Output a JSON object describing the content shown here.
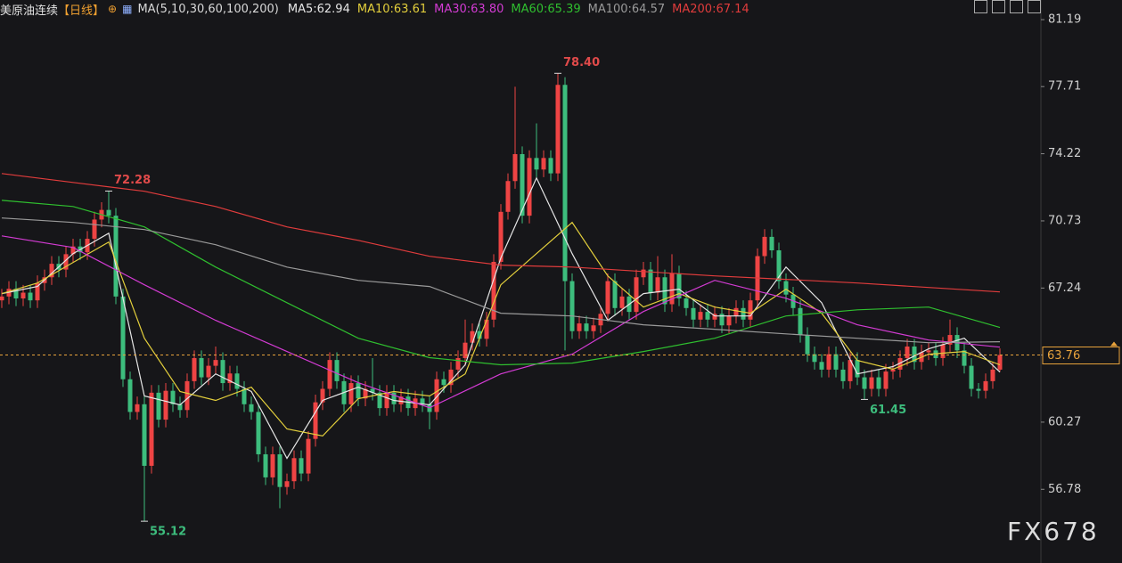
{
  "chart_data": {
    "type": "candlestick",
    "title": "美原油连续",
    "timeframe": "【日线】",
    "ma_settings": "MA(5,10,30,60,100,200)",
    "watermark": "FX678",
    "up_color": "#ee4444",
    "down_color": "#3dbd7d",
    "ylim": [
      52.95,
      82.21
    ],
    "yticks": [
      81.19,
      77.71,
      74.22,
      70.73,
      67.24,
      63.76,
      60.27,
      56.78
    ],
    "grid": false,
    "last_price": {
      "value": 63.76,
      "label": "63.76",
      "color": "#e8a33c"
    },
    "annotations": [
      {
        "value": 72.28,
        "label": "72.28"
      },
      {
        "value": 78.4,
        "label": "78.40"
      },
      {
        "value": 55.12,
        "label": "55.12"
      },
      {
        "value": 61.45,
        "label": "61.45"
      }
    ],
    "ohlc": [
      [
        66.6,
        67.2,
        66.2,
        66.8
      ],
      [
        66.8,
        67.6,
        66.4,
        67.2
      ],
      [
        67.2,
        67.6,
        66.3,
        66.7
      ],
      [
        66.7,
        67.4,
        66.3,
        67.0
      ],
      [
        67.0,
        67.4,
        66.2,
        66.6
      ],
      [
        66.6,
        67.9,
        66.2,
        67.5
      ],
      [
        67.5,
        68.2,
        67.1,
        67.8
      ],
      [
        67.8,
        68.9,
        67.4,
        68.5
      ],
      [
        68.5,
        68.9,
        67.8,
        68.2
      ],
      [
        68.2,
        69.4,
        67.8,
        69.0
      ],
      [
        69.0,
        69.8,
        68.6,
        69.4
      ],
      [
        69.4,
        69.8,
        68.7,
        69.1
      ],
      [
        69.1,
        70.2,
        68.7,
        69.8
      ],
      [
        69.8,
        71.2,
        69.4,
        70.8
      ],
      [
        70.8,
        71.7,
        70.4,
        71.3
      ],
      [
        71.3,
        72.28,
        70.6,
        71.0
      ],
      [
        71.0,
        71.4,
        66.4,
        66.8
      ],
      [
        66.8,
        67.2,
        62.1,
        62.5
      ],
      [
        62.5,
        62.9,
        60.4,
        60.8
      ],
      [
        60.8,
        61.6,
        60.4,
        61.2
      ],
      [
        61.2,
        61.6,
        55.12,
        58.0
      ],
      [
        58.0,
        62.2,
        57.6,
        61.8
      ],
      [
        61.8,
        62.2,
        60.0,
        60.4
      ],
      [
        60.4,
        62.3,
        60.0,
        61.9
      ],
      [
        61.9,
        62.3,
        60.8,
        61.2
      ],
      [
        61.2,
        61.6,
        60.5,
        60.9
      ],
      [
        60.9,
        62.8,
        60.5,
        62.4
      ],
      [
        62.4,
        64.0,
        62.0,
        63.6
      ],
      [
        63.6,
        64.0,
        62.2,
        62.6
      ],
      [
        62.6,
        63.6,
        62.2,
        63.2
      ],
      [
        63.2,
        64.2,
        62.8,
        63.5
      ],
      [
        63.5,
        63.9,
        61.9,
        62.3
      ],
      [
        62.3,
        63.2,
        61.9,
        62.8
      ],
      [
        62.8,
        63.2,
        61.6,
        62.0
      ],
      [
        62.0,
        62.4,
        60.8,
        61.2
      ],
      [
        61.2,
        61.6,
        60.4,
        60.8
      ],
      [
        60.8,
        61.2,
        58.2,
        58.6
      ],
      [
        58.6,
        59.0,
        57.0,
        57.4
      ],
      [
        57.4,
        59.0,
        57.0,
        58.6
      ],
      [
        58.6,
        59.0,
        55.8,
        56.9
      ],
      [
        56.9,
        57.6,
        56.5,
        57.2
      ],
      [
        57.2,
        58.8,
        56.8,
        58.4
      ],
      [
        58.4,
        58.8,
        57.2,
        57.6
      ],
      [
        57.6,
        59.8,
        57.2,
        59.4
      ],
      [
        59.4,
        61.7,
        59.0,
        61.3
      ],
      [
        61.3,
        62.4,
        60.9,
        62.0
      ],
      [
        62.0,
        63.9,
        61.6,
        63.5
      ],
      [
        63.5,
        63.9,
        62.0,
        62.4
      ],
      [
        62.4,
        62.8,
        60.8,
        61.2
      ],
      [
        61.2,
        62.7,
        60.8,
        62.3
      ],
      [
        62.3,
        62.7,
        61.1,
        61.5
      ],
      [
        61.5,
        62.4,
        61.1,
        62.0
      ],
      [
        62.0,
        63.6,
        61.4,
        61.8
      ],
      [
        61.8,
        62.2,
        60.6,
        61.0
      ],
      [
        61.0,
        62.2,
        60.6,
        61.8
      ],
      [
        61.8,
        62.2,
        60.8,
        61.2
      ],
      [
        61.2,
        62.0,
        60.8,
        61.6
      ],
      [
        61.6,
        62.0,
        60.6,
        61.0
      ],
      [
        61.0,
        61.9,
        60.6,
        61.5
      ],
      [
        61.5,
        61.9,
        60.8,
        61.2
      ],
      [
        61.2,
        61.6,
        59.9,
        60.8
      ],
      [
        60.8,
        62.9,
        60.4,
        62.5
      ],
      [
        62.5,
        62.9,
        61.8,
        62.2
      ],
      [
        62.2,
        63.4,
        61.8,
        63.0
      ],
      [
        63.0,
        64.0,
        62.6,
        63.6
      ],
      [
        63.6,
        65.6,
        63.2,
        64.4
      ],
      [
        64.4,
        65.4,
        64.0,
        65.0
      ],
      [
        65.0,
        65.4,
        64.2,
        64.6
      ],
      [
        64.6,
        66.0,
        64.2,
        65.6
      ],
      [
        65.6,
        69.0,
        65.2,
        68.6
      ],
      [
        68.6,
        71.6,
        68.2,
        71.2
      ],
      [
        71.2,
        73.2,
        70.8,
        72.8
      ],
      [
        72.8,
        77.7,
        72.4,
        74.2
      ],
      [
        74.2,
        74.6,
        70.6,
        71.0
      ],
      [
        71.0,
        74.4,
        70.6,
        74.0
      ],
      [
        74.0,
        75.8,
        73.0,
        73.4
      ],
      [
        73.4,
        74.4,
        73.0,
        74.0
      ],
      [
        74.0,
        74.4,
        72.8,
        73.2
      ],
      [
        73.2,
        78.4,
        72.8,
        77.8
      ],
      [
        77.8,
        78.2,
        64.0,
        67.6
      ],
      [
        67.6,
        68.0,
        64.6,
        65.0
      ],
      [
        65.0,
        65.8,
        64.6,
        65.4
      ],
      [
        65.4,
        65.8,
        64.6,
        65.0
      ],
      [
        65.0,
        65.7,
        64.6,
        65.3
      ],
      [
        65.3,
        66.3,
        64.9,
        65.9
      ],
      [
        65.9,
        68.0,
        65.5,
        67.6
      ],
      [
        67.6,
        68.0,
        65.8,
        66.2
      ],
      [
        66.2,
        67.2,
        65.8,
        66.8
      ],
      [
        66.8,
        67.2,
        65.6,
        66.0
      ],
      [
        66.0,
        68.2,
        65.6,
        67.8
      ],
      [
        67.8,
        68.6,
        67.4,
        68.2
      ],
      [
        68.2,
        68.6,
        66.6,
        67.0
      ],
      [
        67.0,
        68.9,
        66.6,
        67.8
      ],
      [
        67.8,
        68.2,
        66.0,
        66.4
      ],
      [
        66.4,
        69.0,
        66.0,
        68.0
      ],
      [
        68.0,
        68.4,
        66.3,
        66.7
      ],
      [
        66.7,
        67.1,
        65.8,
        66.2
      ],
      [
        66.2,
        66.6,
        65.2,
        65.6
      ],
      [
        65.6,
        66.4,
        65.2,
        66.0
      ],
      [
        66.0,
        66.4,
        65.2,
        65.6
      ],
      [
        65.6,
        66.3,
        65.2,
        65.9
      ],
      [
        65.9,
        66.3,
        64.9,
        65.3
      ],
      [
        65.3,
        66.2,
        64.9,
        65.8
      ],
      [
        65.8,
        66.6,
        65.4,
        66.2
      ],
      [
        66.2,
        66.6,
        65.2,
        65.6
      ],
      [
        65.6,
        67.0,
        65.2,
        66.6
      ],
      [
        66.6,
        69.3,
        66.2,
        68.9
      ],
      [
        68.9,
        70.3,
        68.5,
        69.9
      ],
      [
        69.9,
        70.3,
        68.8,
        69.2
      ],
      [
        69.2,
        69.6,
        67.2,
        67.6
      ],
      [
        67.6,
        68.0,
        66.5,
        66.9
      ],
      [
        66.9,
        67.3,
        65.8,
        66.2
      ],
      [
        66.2,
        66.6,
        64.4,
        64.8
      ],
      [
        64.8,
        65.2,
        63.4,
        63.8
      ],
      [
        63.8,
        64.2,
        63.0,
        63.4
      ],
      [
        63.4,
        63.8,
        62.6,
        63.0
      ],
      [
        63.0,
        64.2,
        62.6,
        63.8
      ],
      [
        63.8,
        64.2,
        62.6,
        63.0
      ],
      [
        63.0,
        63.4,
        62.0,
        62.4
      ],
      [
        62.4,
        63.9,
        62.0,
        63.5
      ],
      [
        63.5,
        63.9,
        62.2,
        62.6
      ],
      [
        62.6,
        63.0,
        61.45,
        62.0
      ],
      [
        62.0,
        63.0,
        61.6,
        62.6
      ],
      [
        62.6,
        63.0,
        61.6,
        62.0
      ],
      [
        62.0,
        63.3,
        61.6,
        62.9
      ],
      [
        62.9,
        63.4,
        62.5,
        63.0
      ],
      [
        63.0,
        64.0,
        62.6,
        63.6
      ],
      [
        63.6,
        64.6,
        63.2,
        64.2
      ],
      [
        64.2,
        64.6,
        63.0,
        63.4
      ],
      [
        63.4,
        64.3,
        63.0,
        63.9
      ],
      [
        63.9,
        64.4,
        63.5,
        64.0
      ],
      [
        64.0,
        64.4,
        63.2,
        63.6
      ],
      [
        63.6,
        64.7,
        63.2,
        64.3
      ],
      [
        64.3,
        65.6,
        63.9,
        64.8
      ],
      [
        64.8,
        65.2,
        63.6,
        64.0
      ],
      [
        64.0,
        64.4,
        62.8,
        63.2
      ],
      [
        63.2,
        63.6,
        61.6,
        62.0
      ],
      [
        62.0,
        62.3,
        61.5,
        61.9
      ],
      [
        61.9,
        62.8,
        61.5,
        62.4
      ],
      [
        62.4,
        63.4,
        62.0,
        63.0
      ],
      [
        63.0,
        64.1,
        62.9,
        63.76
      ]
    ],
    "series": [
      {
        "name": "MA5:62.94",
        "color": "#e6e6e6",
        "x": [
          0,
          5,
          10,
          15,
          20,
          25,
          30,
          35,
          40,
          45,
          50,
          55,
          60,
          65,
          70,
          75,
          80,
          85,
          90,
          95,
          100,
          105,
          110,
          115,
          120,
          125,
          130,
          135,
          140
        ],
        "values": [
          66.95,
          67.32,
          69.03,
          70.09,
          61.63,
          61.17,
          62.78,
          61.86,
          58.39,
          61.4,
          62.09,
          61.4,
          61.17,
          63.25,
          68.8,
          72.96,
          69.03,
          65.56,
          66.95,
          67.18,
          65.79,
          65.79,
          68.33,
          66.48,
          62.78,
          63.16,
          64.08,
          64.63,
          62.87
        ]
      },
      {
        "name": "MA10:63.61",
        "color": "#e3cf3c",
        "x": [
          0,
          5,
          10,
          15,
          20,
          25,
          30,
          35,
          40,
          45,
          50,
          55,
          60,
          65,
          70,
          75,
          80,
          85,
          90,
          95,
          100,
          105,
          110,
          115,
          120,
          125,
          130,
          135,
          140
        ],
        "values": [
          66.95,
          67.5,
          68.57,
          69.63,
          64.63,
          61.86,
          61.4,
          62.09,
          59.92,
          59.55,
          61.49,
          61.86,
          61.63,
          62.78,
          67.41,
          69.03,
          70.65,
          67.87,
          66.25,
          66.95,
          66.25,
          65.93,
          67.18,
          65.93,
          63.48,
          63.02,
          63.8,
          63.94,
          63.25
        ]
      },
      {
        "name": "MA30:63.80",
        "color": "#d33bd3",
        "x": [
          0,
          10,
          20,
          30,
          40,
          50,
          60,
          70,
          80,
          90,
          100,
          110,
          120,
          130,
          140
        ],
        "values": [
          69.95,
          69.35,
          67.41,
          65.56,
          63.94,
          62.32,
          61.02,
          62.78,
          63.8,
          66.02,
          67.64,
          66.71,
          65.33,
          64.54,
          64.17
        ]
      },
      {
        "name": "MA60:65.39",
        "color": "#2fbf2f",
        "x": [
          0,
          10,
          20,
          30,
          40,
          50,
          60,
          70,
          80,
          90,
          100,
          110,
          120,
          130,
          140
        ],
        "values": [
          71.8,
          71.48,
          70.42,
          68.33,
          66.48,
          64.63,
          63.62,
          63.25,
          63.34,
          63.94,
          64.63,
          65.79,
          66.11,
          66.25,
          65.19
        ]
      },
      {
        "name": "MA100:64.57",
        "color": "#9a9a9a",
        "x": [
          0,
          10,
          20,
          30,
          40,
          50,
          60,
          70,
          80,
          90,
          100,
          110,
          120,
          130,
          140
        ],
        "values": [
          70.88,
          70.65,
          70.28,
          69.49,
          68.33,
          67.64,
          67.32,
          65.93,
          65.79,
          65.33,
          65.1,
          64.86,
          64.63,
          64.4,
          64.45
        ]
      },
      {
        "name": "MA200:67.14",
        "color": "#e03c3c",
        "x": [
          0,
          10,
          20,
          30,
          40,
          50,
          60,
          70,
          80,
          90,
          100,
          110,
          120,
          130,
          140
        ],
        "values": [
          73.19,
          72.73,
          72.27,
          71.48,
          70.42,
          69.72,
          68.89,
          68.43,
          68.33,
          68.1,
          67.87,
          67.69,
          67.5,
          67.27,
          67.04
        ]
      }
    ]
  }
}
